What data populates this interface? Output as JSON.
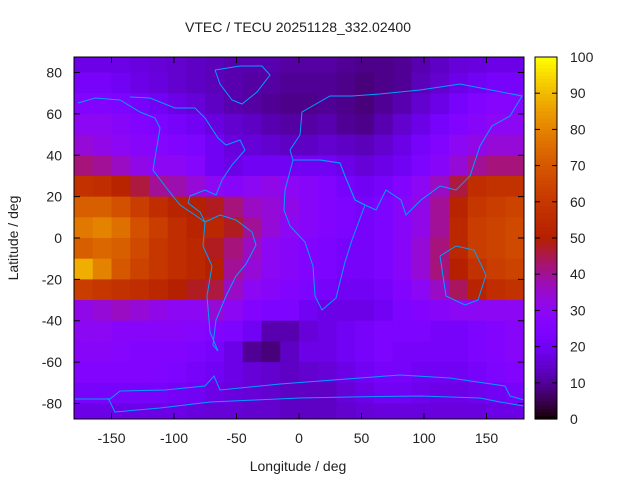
{
  "chart_data": {
    "type": "heatmap",
    "title": "VTEC / TECU 20251128_332.02400",
    "xlabel": "Longitude / deg",
    "ylabel": "Latitude / deg",
    "xlim": [
      -180,
      180
    ],
    "ylim": [
      -87.5,
      87.5
    ],
    "xticks": [
      -150,
      -100,
      -50,
      0,
      50,
      100,
      150
    ],
    "yticks": [
      80,
      60,
      40,
      20,
      0,
      -20,
      -40,
      -60,
      -80
    ],
    "colorbar": {
      "range": [
        0,
        100
      ],
      "ticks": [
        0,
        10,
        20,
        30,
        40,
        50,
        60,
        70,
        80,
        90,
        100
      ],
      "palette": "black-purple-red-yellow"
    },
    "coastline_color": "#00a0ff",
    "grid": false,
    "lon_centers": [
      -172.5,
      -157.5,
      -142.5,
      -127.5,
      -112.5,
      -97.5,
      -82.5,
      -67.5,
      -52.5,
      -37.5,
      -22.5,
      -7.5,
      7.5,
      22.5,
      37.5,
      52.5,
      67.5,
      82.5,
      97.5,
      112.5,
      127.5,
      142.5,
      157.5,
      172.5
    ],
    "lat_centers": [
      85,
      75,
      65,
      55,
      45,
      35,
      25,
      15,
      5,
      -5,
      -15,
      -25,
      -35,
      -45,
      -55,
      -65,
      -75,
      -85
    ],
    "values": [
      [
        18,
        18,
        18,
        17,
        16,
        15,
        14,
        13,
        12,
        12,
        12,
        11,
        11,
        11,
        10,
        9,
        9,
        10,
        12,
        14,
        16,
        17,
        18,
        18
      ],
      [
        22,
        22,
        20,
        18,
        17,
        15,
        14,
        13,
        12,
        11,
        11,
        10,
        10,
        10,
        9,
        8,
        9,
        10,
        13,
        15,
        18,
        20,
        22,
        22
      ],
      [
        26,
        26,
        24,
        22,
        20,
        18,
        16,
        14,
        12,
        11,
        10,
        9,
        9,
        10,
        9,
        8,
        10,
        12,
        15,
        18,
        22,
        25,
        27,
        27
      ],
      [
        30,
        30,
        28,
        26,
        24,
        22,
        20,
        17,
        15,
        14,
        12,
        11,
        11,
        12,
        10,
        9,
        12,
        15,
        18,
        22,
        25,
        28,
        30,
        30
      ],
      [
        34,
        32,
        30,
        28,
        27,
        26,
        24,
        20,
        17,
        16,
        15,
        14,
        14,
        15,
        14,
        13,
        15,
        18,
        22,
        26,
        30,
        32,
        34,
        34
      ],
      [
        42,
        40,
        36,
        32,
        30,
        30,
        27,
        20,
        18,
        20,
        20,
        20,
        20,
        20,
        18,
        16,
        18,
        20,
        24,
        28,
        34,
        40,
        42,
        42
      ],
      [
        58,
        56,
        52,
        46,
        40,
        38,
        34,
        30,
        28,
        30,
        32,
        30,
        28,
        26,
        22,
        20,
        22,
        26,
        30,
        36,
        46,
        56,
        58,
        58
      ],
      [
        72,
        72,
        68,
        62,
        56,
        52,
        50,
        48,
        42,
        36,
        34,
        32,
        28,
        26,
        24,
        22,
        24,
        28,
        32,
        40,
        52,
        60,
        62,
        64
      ],
      [
        78,
        80,
        76,
        68,
        62,
        56,
        52,
        54,
        48,
        40,
        34,
        30,
        28,
        26,
        24,
        22,
        24,
        28,
        32,
        40,
        54,
        62,
        64,
        66
      ],
      [
        72,
        74,
        72,
        66,
        60,
        56,
        54,
        48,
        42,
        36,
        30,
        28,
        26,
        24,
        22,
        22,
        24,
        28,
        34,
        42,
        54,
        62,
        64,
        66
      ],
      [
        88,
        80,
        70,
        64,
        60,
        56,
        54,
        50,
        40,
        34,
        30,
        28,
        26,
        24,
        22,
        22,
        24,
        28,
        34,
        42,
        50,
        58,
        62,
        64
      ],
      [
        62,
        60,
        58,
        56,
        54,
        50,
        48,
        46,
        36,
        30,
        28,
        26,
        24,
        22,
        20,
        20,
        22,
        26,
        30,
        36,
        44,
        52,
        56,
        58
      ],
      [
        32,
        34,
        36,
        34,
        32,
        30,
        30,
        34,
        30,
        26,
        24,
        24,
        20,
        18,
        18,
        18,
        20,
        24,
        26,
        28,
        30,
        30,
        30,
        30
      ],
      [
        30,
        30,
        28,
        28,
        28,
        28,
        27,
        26,
        24,
        20,
        12,
        12,
        16,
        18,
        20,
        22,
        24,
        24,
        24,
        22,
        22,
        24,
        26,
        28
      ],
      [
        28,
        28,
        27,
        26,
        26,
        26,
        24,
        22,
        18,
        10,
        8,
        14,
        18,
        18,
        20,
        22,
        24,
        22,
        22,
        22,
        22,
        24,
        26,
        28
      ],
      [
        26,
        26,
        26,
        26,
        25,
        24,
        22,
        20,
        18,
        16,
        15,
        14,
        15,
        16,
        18,
        20,
        22,
        22,
        20,
        20,
        20,
        22,
        24,
        26
      ],
      [
        22,
        22,
        22,
        22,
        22,
        21,
        20,
        18,
        17,
        16,
        15,
        14,
        14,
        14,
        16,
        18,
        20,
        20,
        19,
        18,
        18,
        19,
        20,
        22
      ],
      [
        18,
        18,
        18,
        18,
        18,
        18,
        17,
        16,
        16,
        15,
        15,
        14,
        14,
        14,
        15,
        16,
        17,
        17,
        17,
        17,
        17,
        17,
        18,
        18
      ]
    ]
  }
}
